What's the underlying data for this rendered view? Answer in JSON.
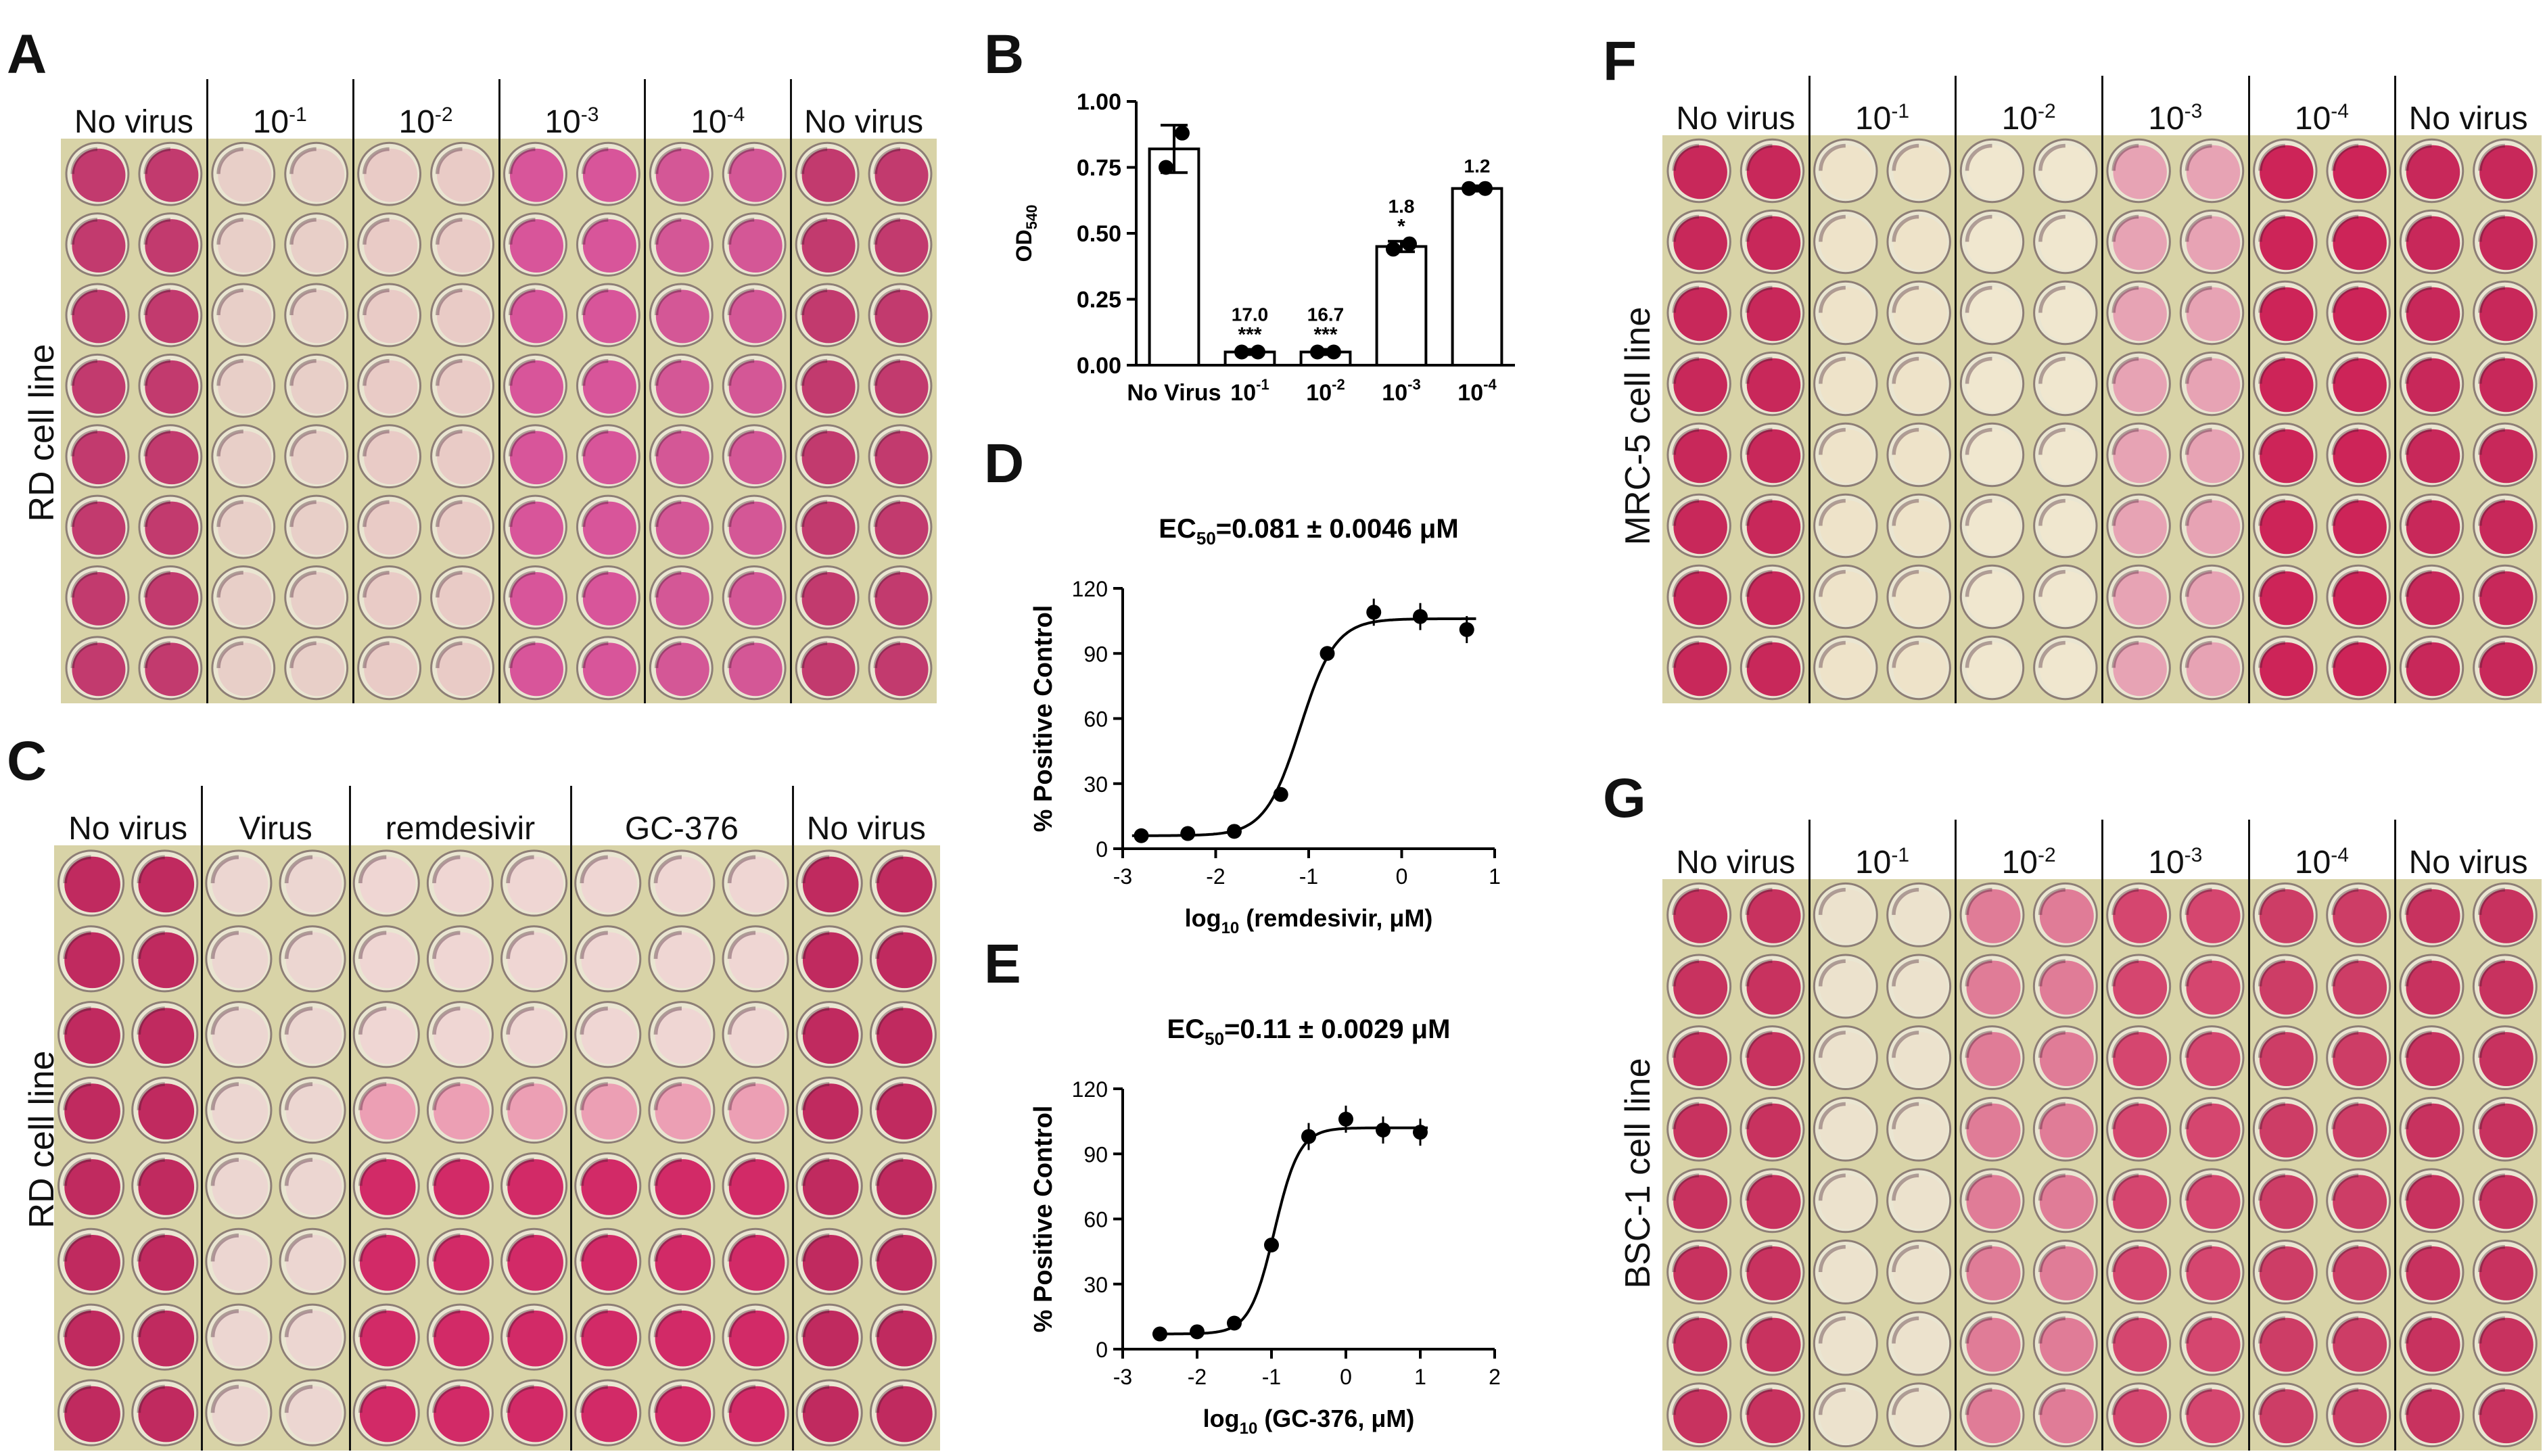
{
  "panels": {
    "A": {
      "label": "A",
      "side_label": "RD cell line",
      "headers": [
        {
          "base": "No virus",
          "exp": ""
        },
        {
          "base": "10",
          "exp": "-1"
        },
        {
          "base": "10",
          "exp": "-2"
        },
        {
          "base": "10",
          "exp": "-3"
        },
        {
          "base": "10",
          "exp": "-4"
        },
        {
          "base": "No virus",
          "exp": ""
        }
      ],
      "column_colors": [
        "#c23a6e",
        "#c23a6e",
        "#e8cfc8",
        "#e8cfc8",
        "#e9cbc6",
        "#e9cbc6",
        "#d8559a",
        "#d8559a",
        "#d45796",
        "#d45796",
        "#c23a6e",
        "#c23a6e"
      ]
    },
    "B": {
      "label": "B",
      "chart_data": {
        "type": "bar",
        "categories": [
          "No Virus",
          "10-1",
          "10-2",
          "10-3",
          "10-4"
        ],
        "values": [
          0.82,
          0.05,
          0.05,
          0.45,
          0.67
        ],
        "points": [
          [
            0.75,
            0.88
          ],
          [
            0.05,
            0.05
          ],
          [
            0.05,
            0.05
          ],
          [
            0.44,
            0.46
          ],
          [
            0.67,
            0.67
          ]
        ],
        "errors": [
          0.09,
          0.01,
          0.01,
          0.02,
          0.01
        ],
        "annotations": [
          {
            "index": 1,
            "value": "17.0",
            "stars": "***"
          },
          {
            "index": 2,
            "value": "16.7",
            "stars": "***"
          },
          {
            "index": 3,
            "value": "1.8",
            "stars": "*"
          },
          {
            "index": 4,
            "value": "1.2",
            "stars": ""
          }
        ],
        "ylabel": "OD540",
        "ylim": [
          0,
          1.0
        ],
        "yticks": [
          "0.00",
          "0.25",
          "0.50",
          "0.75",
          "1.00"
        ]
      }
    },
    "C": {
      "label": "C",
      "side_label": "RD cell line",
      "headers": [
        "No virus",
        "Virus",
        "remdesivir",
        "GC-376",
        "No virus"
      ]
    },
    "D": {
      "label": "D",
      "chart_data": {
        "type": "scatter",
        "title": "EC50=0.081 ± 0.0046 μM",
        "xlabel": "log10 (remdesivir, μM)",
        "ylabel": "% Positive Control",
        "xlim": [
          -3,
          1
        ],
        "ylim": [
          0,
          120
        ],
        "xticks": [
          "-3",
          "-2",
          "-1",
          "0",
          "1"
        ],
        "yticks": [
          "0",
          "30",
          "60",
          "90",
          "120"
        ],
        "x": [
          -2.8,
          -2.3,
          -1.8,
          -1.3,
          -0.8,
          -0.3,
          0.2,
          0.7
        ],
        "y": [
          6,
          7,
          8,
          25,
          90,
          109,
          107,
          101
        ],
        "fit": {
          "bottom": 6,
          "top": 106,
          "logEC50": -1.09,
          "hill": 2.3
        }
      }
    },
    "E": {
      "label": "E",
      "chart_data": {
        "type": "scatter",
        "title": "EC50=0.11 ± 0.0029 μM",
        "xlabel": "log10 (GC-376, μM)",
        "ylabel": "% Positive Control",
        "xlim": [
          -3,
          2
        ],
        "ylim": [
          0,
          120
        ],
        "xticks": [
          "-3",
          "-2",
          "-1",
          "0",
          "1",
          "2"
        ],
        "yticks": [
          "0",
          "30",
          "60",
          "90",
          "120"
        ],
        "x": [
          -2.5,
          -2.0,
          -1.5,
          -1.0,
          -0.5,
          0.0,
          0.5,
          1.0
        ],
        "y": [
          7,
          8,
          12,
          48,
          98,
          106,
          101,
          100
        ],
        "fit": {
          "bottom": 7,
          "top": 102,
          "logEC50": -0.96,
          "hill": 2.6
        }
      }
    },
    "F": {
      "label": "F",
      "side_label": "MRC-5 cell line",
      "headers": [
        {
          "base": "No virus",
          "exp": ""
        },
        {
          "base": "10",
          "exp": "-1"
        },
        {
          "base": "10",
          "exp": "-2"
        },
        {
          "base": "10",
          "exp": "-3"
        },
        {
          "base": "10",
          "exp": "-4"
        },
        {
          "base": "No virus",
          "exp": ""
        }
      ],
      "column_colors": [
        "#c8285a",
        "#c8285a",
        "#eee3c9",
        "#eee3c9",
        "#f0e7cf",
        "#f0e7cf",
        "#e7a3b4",
        "#e7a3b4",
        "#cd2458",
        "#cd2458",
        "#c8285a",
        "#c8285a"
      ]
    },
    "G": {
      "label": "G",
      "side_label": "BSC-1 cell line",
      "headers": [
        {
          "base": "No virus",
          "exp": ""
        },
        {
          "base": "10",
          "exp": "-1"
        },
        {
          "base": "10",
          "exp": "-2"
        },
        {
          "base": "10",
          "exp": "-3"
        },
        {
          "base": "10",
          "exp": "-4"
        },
        {
          "base": "No virus",
          "exp": ""
        }
      ],
      "column_colors": [
        "#c8325f",
        "#c8325f",
        "#ece2cd",
        "#ece2cd",
        "#e07c97",
        "#e07c97",
        "#d5466f",
        "#d5466f",
        "#cd3d66",
        "#cd3d66",
        "#c8325f",
        "#c8325f"
      ]
    }
  }
}
